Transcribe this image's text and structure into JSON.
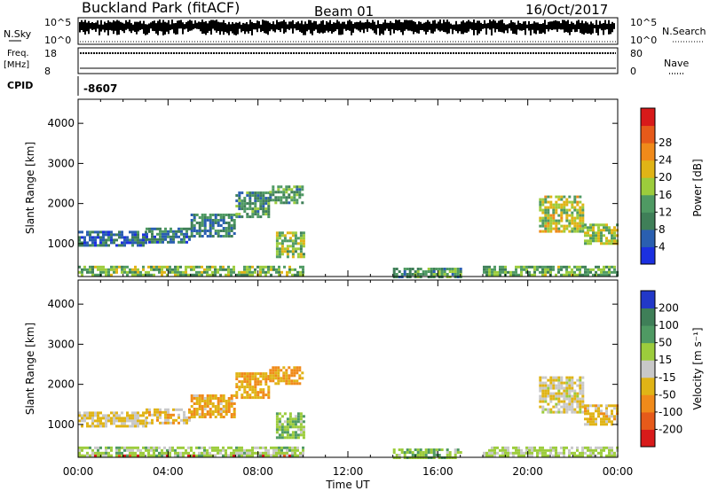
{
  "header": {
    "title": "Buckland Park (fitACF)",
    "beam": "Beam 01",
    "date": "16/Oct/2017"
  },
  "top_panels": {
    "nsky_label": "N.Sky",
    "nsearch_label": "N.Search",
    "noise_ticks": [
      "10^5",
      "10^0"
    ],
    "freq_label": "Freq.",
    "freq_unit": "[MHz]",
    "freq_ticks": [
      "18",
      "8"
    ],
    "nave_label": "Nave",
    "nave_ticks": [
      "80",
      "0"
    ],
    "cpid_label": "CPID",
    "cpid_value": "-8607"
  },
  "colors": {
    "power_scale": [
      "#1b30e0",
      "#2a5fb0",
      "#3f7f58",
      "#4f9a63",
      "#9ccc3c",
      "#e0b416",
      "#f08a1a",
      "#e65a1a",
      "#d81a1a"
    ],
    "velocity_scale": [
      "#d81a1a",
      "#e65a1a",
      "#f08a1a",
      "#e0b416",
      "#c8c8c8",
      "#9ccc3c",
      "#4f9a63",
      "#3f7f58",
      "#2238c8"
    ]
  },
  "chart_data": [
    {
      "type": "heatmap",
      "title": "",
      "xlabel": "Time UT",
      "ylabel": "Slant Range [km]",
      "x_ticks": [
        "00:00",
        "04:00",
        "08:00",
        "12:00",
        "16:00",
        "20:00",
        "00:00"
      ],
      "x_range_hours": [
        0,
        24
      ],
      "y_ticks": [
        "1000",
        "2000",
        "3000",
        "4000"
      ],
      "y_range_km": [
        180,
        4600
      ],
      "colorbar": {
        "label": "Power [dB]",
        "ticks": [
          "4",
          "8",
          "12",
          "16",
          "20",
          "24",
          "28"
        ],
        "range": [
          0,
          32
        ]
      },
      "echo_regions": [
        {
          "start_hour": 0.0,
          "end_hour": 10.0,
          "min_km": 200,
          "max_km": 450,
          "value": 14
        },
        {
          "start_hour": 0.0,
          "end_hour": 3.0,
          "min_km": 980,
          "max_km": 1320,
          "value": 7
        },
        {
          "start_hour": 3.0,
          "end_hour": 5.0,
          "min_km": 1020,
          "max_km": 1400,
          "value": 8
        },
        {
          "start_hour": 5.0,
          "end_hour": 7.0,
          "min_km": 1200,
          "max_km": 1750,
          "value": 9
        },
        {
          "start_hour": 7.0,
          "end_hour": 8.5,
          "min_km": 1700,
          "max_km": 2300,
          "value": 10
        },
        {
          "start_hour": 8.5,
          "end_hour": 10.0,
          "min_km": 2050,
          "max_km": 2450,
          "value": 11
        },
        {
          "start_hour": 8.8,
          "end_hour": 10.0,
          "min_km": 700,
          "max_km": 1300,
          "value": 15
        },
        {
          "start_hour": 14.0,
          "end_hour": 17.0,
          "min_km": 200,
          "max_km": 400,
          "value": 11
        },
        {
          "start_hour": 18.0,
          "end_hour": 24.0,
          "min_km": 200,
          "max_km": 450,
          "value": 13
        },
        {
          "start_hour": 20.5,
          "end_hour": 22.5,
          "min_km": 1300,
          "max_km": 2200,
          "value": 17
        },
        {
          "start_hour": 22.5,
          "end_hour": 24.0,
          "min_km": 1000,
          "max_km": 1500,
          "value": 16
        }
      ]
    },
    {
      "type": "heatmap",
      "title": "",
      "xlabel": "Time UT",
      "ylabel": "Slant Range [km]",
      "x_ticks": [
        "00:00",
        "04:00",
        "08:00",
        "12:00",
        "16:00",
        "20:00",
        "00:00"
      ],
      "x_range_hours": [
        0,
        24
      ],
      "y_ticks": [
        "1000",
        "2000",
        "3000",
        "4000"
      ],
      "y_range_km": [
        180,
        4600
      ],
      "colorbar": {
        "label": "Velocity [m s⁻¹]",
        "ticks": [
          "-200",
          "-100",
          "-50",
          "-15",
          "15",
          "50",
          "100",
          "200"
        ]
      },
      "echo_regions": [
        {
          "start_hour": 0.0,
          "end_hour": 10.0,
          "min_km": 200,
          "max_km": 250,
          "value": -220
        },
        {
          "start_hour": 0.0,
          "end_hour": 10.0,
          "min_km": 250,
          "max_km": 450,
          "value": 30
        },
        {
          "start_hour": 0.0,
          "end_hour": 3.0,
          "min_km": 980,
          "max_km": 1320,
          "value": -20
        },
        {
          "start_hour": 3.0,
          "end_hour": 5.0,
          "min_km": 1020,
          "max_km": 1400,
          "value": -30
        },
        {
          "start_hour": 5.0,
          "end_hour": 7.0,
          "min_km": 1200,
          "max_km": 1750,
          "value": -40
        },
        {
          "start_hour": 7.0,
          "end_hour": 8.5,
          "min_km": 1700,
          "max_km": 2300,
          "value": -45
        },
        {
          "start_hour": 8.5,
          "end_hour": 10.0,
          "min_km": 2050,
          "max_km": 2450,
          "value": -60
        },
        {
          "start_hour": 8.8,
          "end_hour": 10.0,
          "min_km": 700,
          "max_km": 1300,
          "value": 40
        },
        {
          "start_hour": 14.0,
          "end_hour": 17.0,
          "min_km": 200,
          "max_km": 400,
          "value": 40
        },
        {
          "start_hour": 18.0,
          "end_hour": 24.0,
          "min_km": 200,
          "max_km": 450,
          "value": 20
        },
        {
          "start_hour": 20.5,
          "end_hour": 22.5,
          "min_km": 1300,
          "max_km": 2200,
          "value": -10
        },
        {
          "start_hour": 22.5,
          "end_hour": 24.0,
          "min_km": 1000,
          "max_km": 1500,
          "value": -30
        }
      ]
    }
  ]
}
